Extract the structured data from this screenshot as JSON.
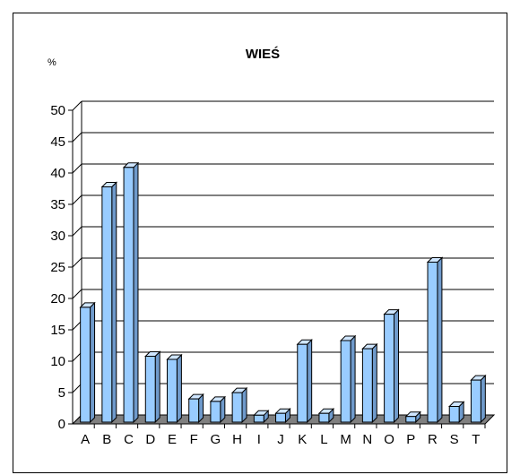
{
  "chart_data": {
    "type": "bar",
    "title": "WIEŚ",
    "ylabel": "%",
    "xlabel": "",
    "ylim": [
      0,
      50
    ],
    "yticks": [
      0,
      5,
      10,
      15,
      20,
      25,
      30,
      35,
      40,
      45,
      50
    ],
    "grid": true,
    "style": "3d",
    "categories": [
      "A",
      "B",
      "C",
      "D",
      "E",
      "F",
      "G",
      "H",
      "I",
      "J",
      "K",
      "L",
      "M",
      "N",
      "O",
      "P",
      "R",
      "S",
      "T"
    ],
    "values": [
      18.3,
      37.5,
      40.6,
      10.5,
      10.0,
      3.7,
      3.3,
      4.7,
      1.1,
      1.4,
      12.4,
      1.4,
      13.0,
      11.7,
      17.2,
      0.9,
      25.5,
      2.5,
      6.7
    ],
    "colors": {
      "bar_front": "#99ccff",
      "bar_side": "#6f9acb",
      "bar_top": "#cfe6ff",
      "floor": "#808080",
      "grid": "#000000"
    }
  }
}
